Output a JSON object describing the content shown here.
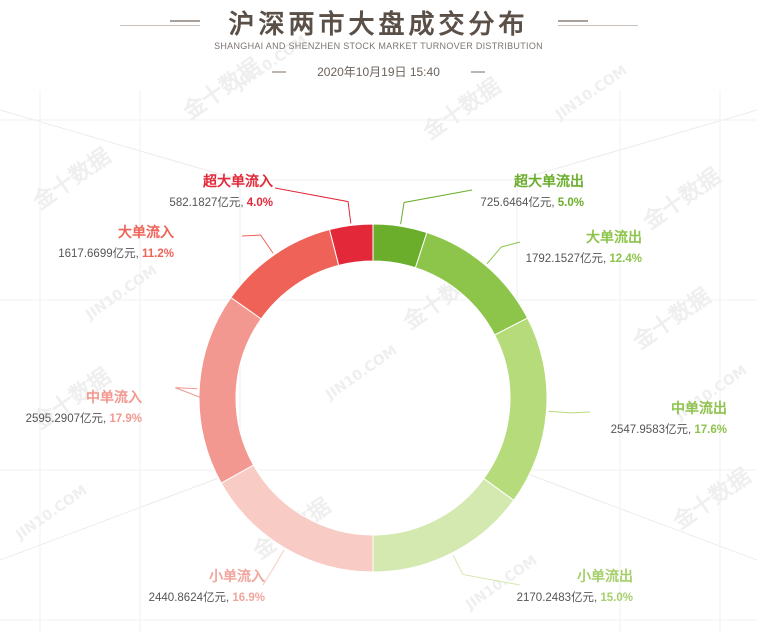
{
  "header": {
    "title": "沪深两市大盘成交分布",
    "subtitle": "SHANGHAI AND SHENZHEN STOCK MARKET TURNOVER DISTRIBUTION",
    "datetime": "2020年10月19日 15:40"
  },
  "watermark": {
    "text_cn": "金十数据",
    "text_en": "JIN10.COM"
  },
  "chart_data": {
    "type": "pie",
    "variant": "donut",
    "title": "沪深两市大盘成交分布",
    "unit": "亿元",
    "slices": [
      {
        "name": "超大单流出",
        "value": 725.6464,
        "value_label": "725.6464亿元",
        "percent_label": "5.0%",
        "color": "#6aae2c"
      },
      {
        "name": "大单流出",
        "value": 1792.1527,
        "value_label": "1792.1527亿元",
        "percent_label": "12.4%",
        "color": "#8dc44a"
      },
      {
        "name": "中单流出",
        "value": 2547.9583,
        "value_label": "2547.9583亿元",
        "percent_label": "17.6%",
        "color": "#b6db7b"
      },
      {
        "name": "小单流出",
        "value": 2170.2483,
        "value_label": "2170.2483亿元",
        "percent_label": "15.0%",
        "color": "#d3e9af"
      },
      {
        "name": "小单流入",
        "value": 2440.8624,
        "value_label": "2440.8624亿元",
        "percent_label": "16.9%",
        "color": "#f8cbc5"
      },
      {
        "name": "中单流入",
        "value": 2595.2907,
        "value_label": "2595.2907亿元",
        "percent_label": "17.9%",
        "color": "#f29890"
      },
      {
        "name": "大单流入",
        "value": 1617.6699,
        "value_label": "1617.6699亿元",
        "percent_label": "11.2%",
        "color": "#ee6257"
      },
      {
        "name": "超大单流入",
        "value": 582.1827,
        "value_label": "582.1827亿元",
        "percent_label": "4.0%",
        "color": "#e3283a"
      }
    ]
  }
}
